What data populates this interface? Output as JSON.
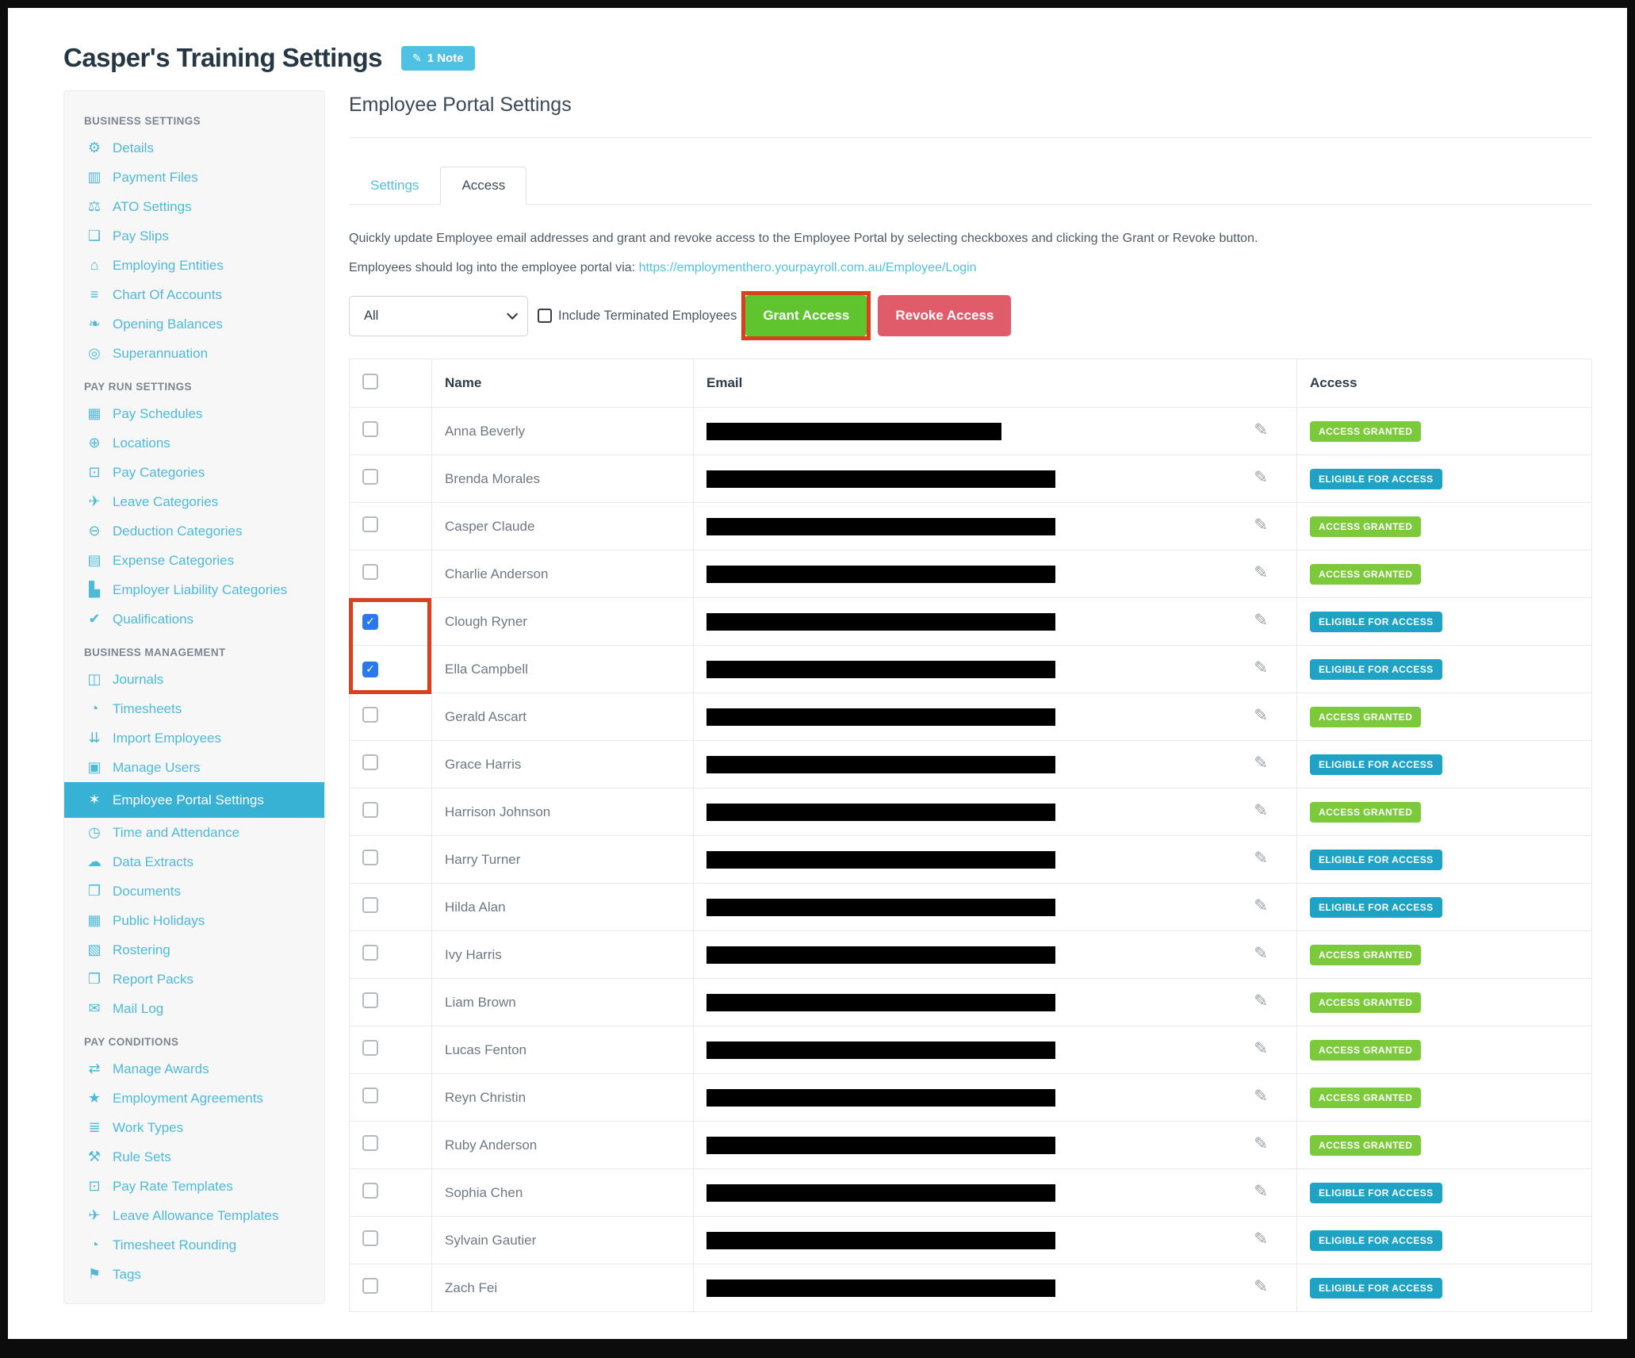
{
  "page": {
    "title": "Casper's Training Settings",
    "note_badge": "1 Note"
  },
  "colors": {
    "sidebar_accent": "#4fb9d8",
    "active_item_bg": "#38b2d4",
    "note_badge": "#4fc2e4",
    "link": "#54c0dc",
    "grant_button": "#5fc42d",
    "revoke_button": "#e05c6b",
    "badge_granted": "#7cc93c",
    "badge_eligible": "#1fa3c5",
    "annotation_red": "#d9411e",
    "checked_checkbox": "#2a79ec"
  },
  "sidebar": {
    "sections": [
      {
        "header": "BUSINESS SETTINGS",
        "items": [
          {
            "label": "Details",
            "icon": "gear-icon"
          },
          {
            "label": "Payment Files",
            "icon": "floppy-disk-icon"
          },
          {
            "label": "ATO Settings",
            "icon": "scales-icon"
          },
          {
            "label": "Pay Slips",
            "icon": "document-icon"
          },
          {
            "label": "Employing Entities",
            "icon": "bank-icon"
          },
          {
            "label": "Chart Of Accounts",
            "icon": "list-icon"
          },
          {
            "label": "Opening Balances",
            "icon": "leaf-icon"
          },
          {
            "label": "Superannuation",
            "icon": "life-ring-icon"
          }
        ]
      },
      {
        "header": "PAY RUN SETTINGS",
        "items": [
          {
            "label": "Pay Schedules",
            "icon": "calendar-icon"
          },
          {
            "label": "Locations",
            "icon": "globe-icon"
          },
          {
            "label": "Pay Categories",
            "icon": "money-icon"
          },
          {
            "label": "Leave Categories",
            "icon": "plane-icon"
          },
          {
            "label": "Deduction Categories",
            "icon": "minus-circle-icon"
          },
          {
            "label": "Expense Categories",
            "icon": "archive-icon"
          },
          {
            "label": "Employer Liability Categories",
            "icon": "factory-icon"
          },
          {
            "label": "Qualifications",
            "icon": "check-icon"
          }
        ]
      },
      {
        "header": "BUSINESS MANAGEMENT",
        "items": [
          {
            "label": "Journals",
            "icon": "columns-icon"
          },
          {
            "label": "Timesheets",
            "icon": "clock-icon"
          },
          {
            "label": "Import Employees",
            "icon": "people-icon"
          },
          {
            "label": "Manage Users",
            "icon": "lock-icon"
          },
          {
            "label": "Employee Portal Settings",
            "icon": "magic-wand-icon",
            "active": true
          },
          {
            "label": "Time and Attendance",
            "icon": "user-clock-icon"
          },
          {
            "label": "Data Extracts",
            "icon": "cloud-download-icon"
          },
          {
            "label": "Documents",
            "icon": "folder-icon"
          },
          {
            "label": "Public Holidays",
            "icon": "calendar-icon"
          },
          {
            "label": "Rostering",
            "icon": "calendar-grid-icon"
          },
          {
            "label": "Report Packs",
            "icon": "folder-open-icon"
          },
          {
            "label": "Mail Log",
            "icon": "envelope-icon"
          }
        ]
      },
      {
        "header": "PAY CONDITIONS",
        "items": [
          {
            "label": "Manage Awards",
            "icon": "exchange-arrows-icon"
          },
          {
            "label": "Employment Agreements",
            "icon": "star-icon"
          },
          {
            "label": "Work Types",
            "icon": "book-icon"
          },
          {
            "label": "Rule Sets",
            "icon": "gavel-icon"
          },
          {
            "label": "Pay Rate Templates",
            "icon": "money-icon"
          },
          {
            "label": "Leave Allowance Templates",
            "icon": "plane-icon"
          },
          {
            "label": "Timesheet Rounding",
            "icon": "clock-icon"
          },
          {
            "label": "Tags",
            "icon": "tag-icon"
          }
        ]
      }
    ]
  },
  "main": {
    "heading": "Employee Portal Settings",
    "tabs": [
      {
        "label": "Settings",
        "active": false
      },
      {
        "label": "Access",
        "active": true
      }
    ],
    "description": "Quickly update Employee email addresses and grant and revoke access to the Employee Portal by selecting checkboxes and clicking the Grant or Revoke button.",
    "portal_login_prefix": "Employees should log into the employee portal via:",
    "portal_login_url": "https://employmenthero.yourpayroll.com.au/Employee/Login",
    "filter": {
      "selected": "All"
    },
    "include_terminated_label": "Include Terminated Employees",
    "grant_button": "Grant Access",
    "revoke_button": "Revoke Access"
  },
  "table": {
    "columns": [
      "Name",
      "Email",
      "Access"
    ],
    "status_labels": {
      "granted": "ACCESS GRANTED",
      "eligible": "ELIGIBLE FOR ACCESS"
    },
    "rows": [
      {
        "name": "Anna Beverly",
        "checked": false,
        "status": "granted"
      },
      {
        "name": "Brenda Morales",
        "checked": false,
        "status": "eligible"
      },
      {
        "name": "Casper Claude",
        "checked": false,
        "status": "granted"
      },
      {
        "name": "Charlie Anderson",
        "checked": false,
        "status": "granted"
      },
      {
        "name": "Clough Ryner",
        "checked": true,
        "status": "eligible"
      },
      {
        "name": "Ella Campbell",
        "checked": true,
        "status": "eligible"
      },
      {
        "name": "Gerald Ascart",
        "checked": false,
        "status": "granted"
      },
      {
        "name": "Grace Harris",
        "checked": false,
        "status": "eligible"
      },
      {
        "name": "Harrison Johnson",
        "checked": false,
        "status": "granted"
      },
      {
        "name": "Harry Turner",
        "checked": false,
        "status": "eligible"
      },
      {
        "name": "Hilda Alan",
        "checked": false,
        "status": "eligible"
      },
      {
        "name": "Ivy Harris",
        "checked": false,
        "status": "granted"
      },
      {
        "name": "Liam Brown",
        "checked": false,
        "status": "granted"
      },
      {
        "name": "Lucas Fenton",
        "checked": false,
        "status": "granted"
      },
      {
        "name": "Reyn Christin",
        "checked": false,
        "status": "granted"
      },
      {
        "name": "Ruby Anderson",
        "checked": false,
        "status": "granted"
      },
      {
        "name": "Sophia Chen",
        "checked": false,
        "status": "eligible"
      },
      {
        "name": "Sylvain Gautier",
        "checked": false,
        "status": "eligible"
      },
      {
        "name": "Zach Fei",
        "checked": false,
        "status": "eligible"
      }
    ]
  }
}
